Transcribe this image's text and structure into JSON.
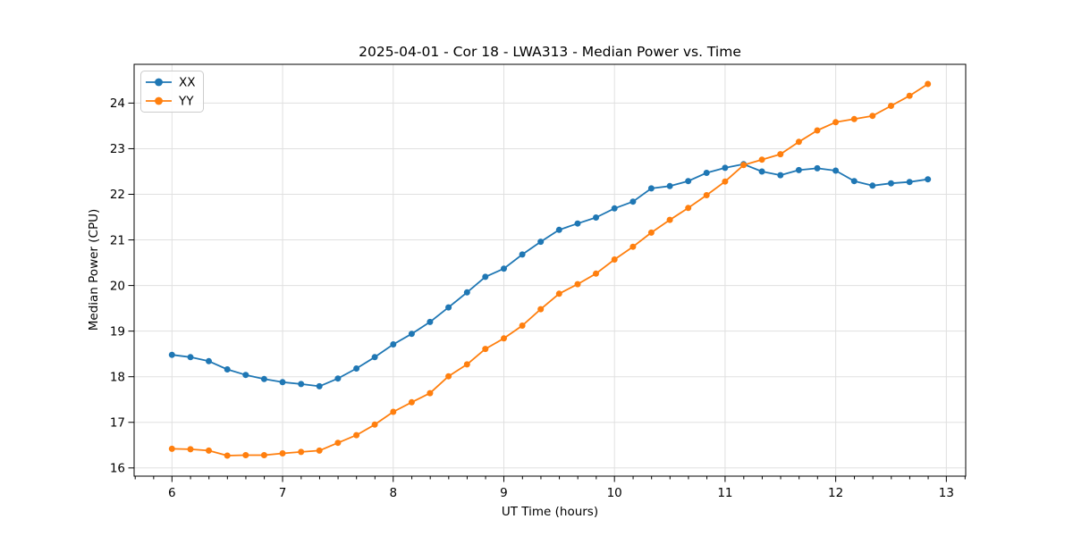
{
  "chart_data": {
    "type": "line",
    "title": "2025-04-01 - Cor 18 - LWA313 - Median Power vs. Time",
    "xlabel": "UT Time (hours)",
    "ylabel": "Median Power (CPU)",
    "xlim": [
      5.658,
      13.175
    ],
    "ylim": [
      15.82,
      24.85
    ],
    "x_ticks": [
      6,
      7,
      8,
      9,
      10,
      11,
      12,
      13
    ],
    "y_ticks": [
      16,
      17,
      18,
      19,
      20,
      21,
      22,
      23,
      24
    ],
    "x_minor_step": 0.1667,
    "grid": true,
    "legend_position": "upper left",
    "x": [
      6.0,
      6.167,
      6.333,
      6.5,
      6.667,
      6.833,
      7.0,
      7.167,
      7.333,
      7.5,
      7.667,
      7.833,
      8.0,
      8.167,
      8.333,
      8.5,
      8.667,
      8.833,
      9.0,
      9.167,
      9.333,
      9.5,
      9.667,
      9.833,
      10.0,
      10.167,
      10.333,
      10.5,
      10.667,
      10.833,
      11.0,
      11.167,
      11.333,
      11.5,
      11.667,
      11.833,
      12.0,
      12.167,
      12.333,
      12.5,
      12.667,
      12.833
    ],
    "series": [
      {
        "name": "XX",
        "color": "#1f77b4",
        "values": [
          18.48,
          18.43,
          18.34,
          18.16,
          18.04,
          17.95,
          17.88,
          17.84,
          17.79,
          17.96,
          18.18,
          18.43,
          18.71,
          18.94,
          19.2,
          19.52,
          19.85,
          20.19,
          20.37,
          20.68,
          20.96,
          21.22,
          21.36,
          21.49,
          21.69,
          21.84,
          22.13,
          22.18,
          22.29,
          22.47,
          22.58,
          22.66,
          22.5,
          22.42,
          22.53,
          22.57,
          22.52,
          22.29,
          22.19,
          22.24,
          22.27,
          22.33
        ]
      },
      {
        "name": "YY",
        "color": "#ff7f0e",
        "values": [
          16.42,
          16.41,
          16.38,
          16.27,
          16.28,
          16.28,
          16.32,
          16.35,
          16.38,
          16.55,
          16.72,
          16.95,
          17.23,
          17.44,
          17.64,
          18.01,
          18.27,
          18.61,
          18.84,
          19.12,
          19.48,
          19.82,
          20.03,
          20.26,
          20.57,
          20.85,
          21.16,
          21.44,
          21.7,
          21.98,
          22.28,
          22.64,
          22.76,
          22.88,
          23.15,
          23.4,
          23.58,
          23.65,
          23.72,
          23.94,
          24.16,
          24.42
        ]
      }
    ]
  }
}
